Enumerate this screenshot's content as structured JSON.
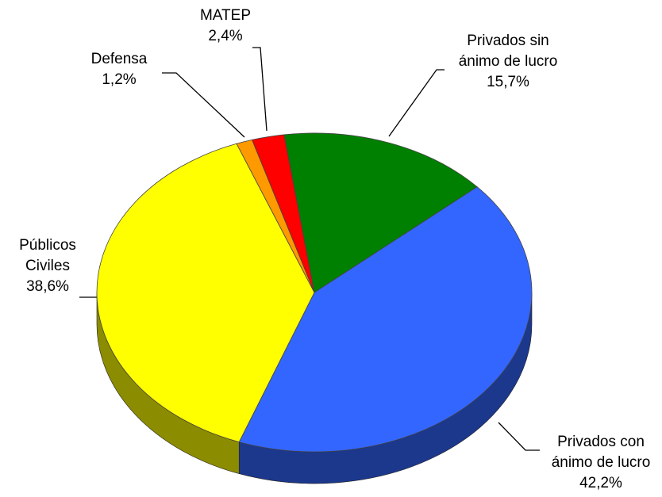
{
  "chart_data": {
    "type": "pie",
    "categories": [
      "Privados sin\nánimo de lucro",
      "Privados con\nánimo de lucro",
      "Públicos\nCiviles",
      "Defensa",
      "MATEP"
    ],
    "values": [
      15.7,
      42.2,
      38.6,
      1.2,
      2.4
    ],
    "value_labels": [
      "15,7%",
      "42,2%",
      "38,6%",
      "1,2%",
      "2,4%"
    ],
    "colors": [
      "#008000",
      "#3366ff",
      "#ffff00",
      "#ff9900",
      "#ff0000"
    ]
  }
}
